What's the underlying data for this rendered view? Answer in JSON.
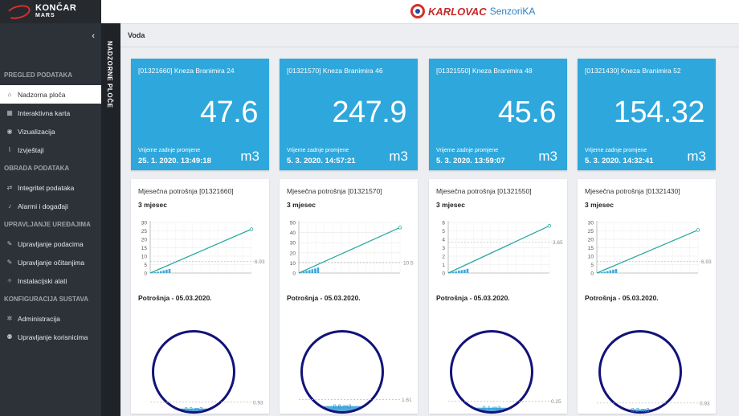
{
  "sidebar": {
    "logo": {
      "line1": "KONČAR",
      "line2": "MARS"
    },
    "collapse_icon": "chevron-left-icon",
    "sections": [
      {
        "title": "PREGLED PODATAKA",
        "items": [
          {
            "label": "Nadzorna ploča",
            "icon": "dashboard-icon",
            "active": true
          },
          {
            "label": "Interaktivna karta",
            "icon": "grid-icon"
          },
          {
            "label": "Vizualizacija",
            "icon": "eye-icon"
          },
          {
            "label": "Izvještaji",
            "icon": "paperclip-icon"
          }
        ]
      },
      {
        "title": "OBRADA PODATAKA",
        "items": [
          {
            "label": "Integritet podataka",
            "icon": "shuffle-icon"
          },
          {
            "label": "Alarmi i događaji",
            "icon": "bell-icon"
          }
        ]
      },
      {
        "title": "UPRAVLJANJE UREĐAJIMA",
        "items": [
          {
            "label": "Upravljanje podacima",
            "icon": "edit-icon"
          },
          {
            "label": "Upravljanje očitanjima",
            "icon": "edit-icon"
          },
          {
            "label": "Instalacijski alati",
            "icon": "wrench-icon"
          }
        ]
      },
      {
        "title": "KONFIGURACIJA SUSTAVA",
        "items": [
          {
            "label": "Administracija",
            "icon": "gears-icon"
          },
          {
            "label": "Upravljanje korisnicima",
            "icon": "users-icon"
          }
        ]
      }
    ]
  },
  "strip": {
    "label": "NADZORNE PLOČE"
  },
  "topbar": {
    "brand_a": "KARLOVAC",
    "brand_b": "SenzoriKA"
  },
  "page": {
    "title": "Voda"
  },
  "colors": {
    "card_bg": "#2ea7dc",
    "line": "#2aa9a0",
    "bar": "#3fa8dc",
    "gauge_ring": "#12127a",
    "gauge_fill": "#4aaee0"
  },
  "meters": [
    {
      "id": "[01321660] Kneza Branimira 24",
      "value": "47.6",
      "unit": "m3",
      "ts_label": "Vrijeme zadnje promjene",
      "ts": "25. 1. 2020. 13:49:18",
      "chart_title": "Mjesečna potrošnja [01321660]",
      "period": "3 mjesec",
      "sub": "Potrošnja - 05.03.2020.",
      "avg_label": "6.93",
      "gauge_label": "0.2 m3",
      "gauge_ref_label": "0.93"
    },
    {
      "id": "[01321570] Kneza Branimira 46",
      "value": "247.9",
      "unit": "m3",
      "ts_label": "Vrijeme zadnje promjene",
      "ts": "5. 3. 2020. 14:57:21",
      "chart_title": "Mjesečna potrošnja [01321570]",
      "period": "3 mjesec",
      "sub": "Potrošnja - 05.03.2020.",
      "avg_label": "10.5",
      "gauge_label": "0.8 m3",
      "gauge_ref_label": "1.61"
    },
    {
      "id": "[01321550] Kneza Branimira 48",
      "value": "45.6",
      "unit": "m3",
      "ts_label": "Vrijeme zadnje promjene",
      "ts": "5. 3. 2020. 13:59:07",
      "chart_title": "Mjesečna potrošnja [01321550]",
      "period": "3 mjesec",
      "sub": "Potrošnja - 05.03.2020.",
      "avg_label": "3.65",
      "gauge_label": "0.1 m3",
      "gauge_ref_label": "0.25"
    },
    {
      "id": "[01321430] Kneza Branimira 52",
      "value": "154.32",
      "unit": "m3",
      "ts_label": "Vrijeme zadnje promjene",
      "ts": "5. 3. 2020. 14:32:41",
      "chart_title": "Mjesečna potrošnja [01321430]",
      "period": "3 mjesec",
      "sub": "Potrošnja - 05.03.2020.",
      "avg_label": "6.93",
      "gauge_label": "0.2 m3",
      "gauge_ref_label": "0.93"
    }
  ],
  "chart_data": [
    {
      "type": "line",
      "yticks": [
        "0",
        "5",
        "10",
        "15",
        "20",
        "25",
        "30"
      ],
      "ylim": [
        0,
        30
      ],
      "avg": 6.93,
      "line": {
        "x": [
          1,
          31
        ],
        "y": [
          0,
          26
        ]
      },
      "bars": [
        0.3,
        0.5,
        0.8,
        1.2,
        1.6,
        2.0,
        2.4
      ],
      "gauge": {
        "value": 0.2,
        "ref": 0.93,
        "fill_fraction": 0.06
      }
    },
    {
      "type": "line",
      "yticks": [
        "0",
        "10",
        "20",
        "30",
        "40",
        "50"
      ],
      "ylim": [
        0,
        50
      ],
      "avg": 10.5,
      "line": {
        "x": [
          1,
          31
        ],
        "y": [
          0,
          45
        ]
      },
      "bars": [
        0.8,
        1.5,
        2.3,
        3.0,
        3.8,
        4.5,
        5.5
      ],
      "gauge": {
        "value": 0.8,
        "ref": 1.61,
        "fill_fraction": 0.09
      }
    },
    {
      "type": "line",
      "yticks": [
        "0",
        "1",
        "2",
        "3",
        "4",
        "5",
        "6"
      ],
      "ylim": [
        0,
        6
      ],
      "avg": 3.65,
      "line": {
        "x": [
          1,
          31
        ],
        "y": [
          0,
          5.6
        ]
      },
      "bars": [
        0.1,
        0.15,
        0.2,
        0.3,
        0.35,
        0.4,
        0.5
      ],
      "gauge": {
        "value": 0.1,
        "ref": 0.25,
        "fill_fraction": 0.07
      }
    },
    {
      "type": "line",
      "yticks": [
        "0",
        "5",
        "10",
        "15",
        "20",
        "25",
        "30"
      ],
      "ylim": [
        0,
        30
      ],
      "avg": 6.93,
      "line": {
        "x": [
          1,
          31
        ],
        "y": [
          0,
          25.5
        ]
      },
      "bars": [
        0.3,
        0.5,
        0.8,
        1.2,
        1.6,
        2.0,
        2.4
      ],
      "gauge": {
        "value": 0.2,
        "ref": 0.93,
        "fill_fraction": 0.05
      }
    }
  ]
}
